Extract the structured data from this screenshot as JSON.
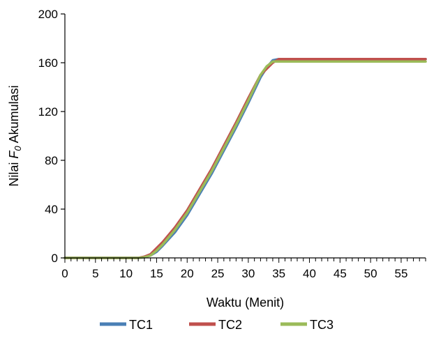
{
  "chart_data": {
    "type": "line",
    "title": "",
    "xlabel": "Waktu (Menit)",
    "ylabel": {
      "prefix": "Nilai ",
      "symbol": "F",
      "subscript": "0",
      "suffix": " Akumulasi"
    },
    "xlim": [
      0,
      59
    ],
    "ylim": [
      0,
      200
    ],
    "x_ticks": [
      0,
      5,
      10,
      15,
      20,
      25,
      30,
      35,
      40,
      45,
      50,
      55
    ],
    "x_tick_labels": [
      "0",
      "5",
      "10",
      "15",
      "20",
      "25",
      "30",
      "35",
      "40",
      "45",
      "50",
      "55"
    ],
    "y_ticks": [
      0,
      40,
      80,
      120,
      160,
      200
    ],
    "y_tick_labels": [
      "0",
      "40",
      "80",
      "120",
      "160",
      "200"
    ],
    "minor_x_step": 1,
    "grid": false,
    "legend_position": "bottom",
    "series": [
      {
        "name": "TC1",
        "color": "#4a7fb5",
        "points": [
          [
            0,
            0
          ],
          [
            12,
            0
          ],
          [
            13,
            0.5
          ],
          [
            14,
            2
          ],
          [
            15,
            5
          ],
          [
            16,
            10
          ],
          [
            18,
            21
          ],
          [
            20,
            35
          ],
          [
            22,
            52
          ],
          [
            24,
            69
          ],
          [
            26,
            88
          ],
          [
            28,
            107
          ],
          [
            30,
            127
          ],
          [
            32,
            148
          ],
          [
            33,
            156
          ],
          [
            34,
            162
          ],
          [
            35,
            163
          ],
          [
            40,
            163
          ],
          [
            45,
            163
          ],
          [
            50,
            163
          ],
          [
            55,
            163
          ],
          [
            59,
            163
          ]
        ]
      },
      {
        "name": "TC2",
        "color": "#c0504d",
        "points": [
          [
            0,
            0
          ],
          [
            12,
            0
          ],
          [
            13,
            1
          ],
          [
            14,
            3
          ],
          [
            15,
            8
          ],
          [
            16,
            13
          ],
          [
            18,
            25
          ],
          [
            20,
            39
          ],
          [
            22,
            56
          ],
          [
            24,
            73
          ],
          [
            26,
            92
          ],
          [
            28,
            111
          ],
          [
            30,
            131
          ],
          [
            32,
            150
          ],
          [
            33,
            155
          ],
          [
            34,
            160
          ],
          [
            35,
            163
          ],
          [
            40,
            163
          ],
          [
            45,
            163
          ],
          [
            50,
            163
          ],
          [
            55,
            163
          ],
          [
            59,
            163
          ]
        ]
      },
      {
        "name": "TC3",
        "color": "#9bbb59",
        "points": [
          [
            0,
            0
          ],
          [
            12,
            0
          ],
          [
            13,
            0.5
          ],
          [
            14,
            2
          ],
          [
            15,
            6
          ],
          [
            16,
            11
          ],
          [
            18,
            23
          ],
          [
            20,
            37
          ],
          [
            22,
            54
          ],
          [
            24,
            71
          ],
          [
            26,
            90
          ],
          [
            28,
            109
          ],
          [
            30,
            129
          ],
          [
            32,
            150
          ],
          [
            33,
            157
          ],
          [
            34,
            161
          ],
          [
            35,
            161
          ],
          [
            40,
            161
          ],
          [
            45,
            161
          ],
          [
            50,
            161
          ],
          [
            55,
            161
          ],
          [
            59,
            161
          ]
        ]
      }
    ]
  }
}
